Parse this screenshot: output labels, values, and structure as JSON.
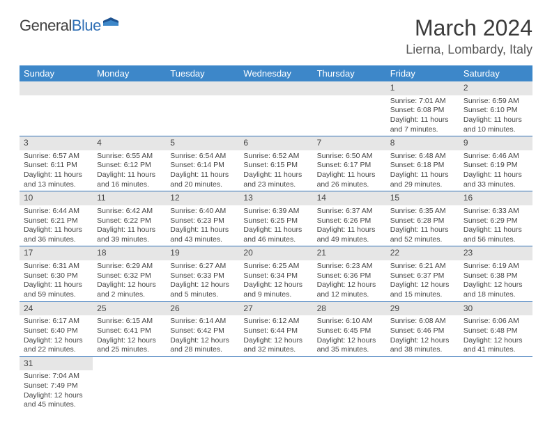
{
  "logo": {
    "general": "General",
    "blue": "Blue"
  },
  "header": {
    "month_title": "March 2024",
    "location": "Lierna, Lombardy, Italy"
  },
  "weekdays": [
    "Sunday",
    "Monday",
    "Tuesday",
    "Wednesday",
    "Thursday",
    "Friday",
    "Saturday"
  ],
  "colors": {
    "header_bg": "#3d87c9",
    "header_fg": "#ffffff",
    "daynum_bg": "#e6e6e6",
    "border": "#2f6fb5"
  },
  "weeks": [
    [
      null,
      null,
      null,
      null,
      null,
      {
        "day": "1",
        "sunrise": "Sunrise: 7:01 AM",
        "sunset": "Sunset: 6:08 PM",
        "daylight1": "Daylight: 11 hours",
        "daylight2": "and 7 minutes."
      },
      {
        "day": "2",
        "sunrise": "Sunrise: 6:59 AM",
        "sunset": "Sunset: 6:10 PM",
        "daylight1": "Daylight: 11 hours",
        "daylight2": "and 10 minutes."
      }
    ],
    [
      {
        "day": "3",
        "sunrise": "Sunrise: 6:57 AM",
        "sunset": "Sunset: 6:11 PM",
        "daylight1": "Daylight: 11 hours",
        "daylight2": "and 13 minutes."
      },
      {
        "day": "4",
        "sunrise": "Sunrise: 6:55 AM",
        "sunset": "Sunset: 6:12 PM",
        "daylight1": "Daylight: 11 hours",
        "daylight2": "and 16 minutes."
      },
      {
        "day": "5",
        "sunrise": "Sunrise: 6:54 AM",
        "sunset": "Sunset: 6:14 PM",
        "daylight1": "Daylight: 11 hours",
        "daylight2": "and 20 minutes."
      },
      {
        "day": "6",
        "sunrise": "Sunrise: 6:52 AM",
        "sunset": "Sunset: 6:15 PM",
        "daylight1": "Daylight: 11 hours",
        "daylight2": "and 23 minutes."
      },
      {
        "day": "7",
        "sunrise": "Sunrise: 6:50 AM",
        "sunset": "Sunset: 6:17 PM",
        "daylight1": "Daylight: 11 hours",
        "daylight2": "and 26 minutes."
      },
      {
        "day": "8",
        "sunrise": "Sunrise: 6:48 AM",
        "sunset": "Sunset: 6:18 PM",
        "daylight1": "Daylight: 11 hours",
        "daylight2": "and 29 minutes."
      },
      {
        "day": "9",
        "sunrise": "Sunrise: 6:46 AM",
        "sunset": "Sunset: 6:19 PM",
        "daylight1": "Daylight: 11 hours",
        "daylight2": "and 33 minutes."
      }
    ],
    [
      {
        "day": "10",
        "sunrise": "Sunrise: 6:44 AM",
        "sunset": "Sunset: 6:21 PM",
        "daylight1": "Daylight: 11 hours",
        "daylight2": "and 36 minutes."
      },
      {
        "day": "11",
        "sunrise": "Sunrise: 6:42 AM",
        "sunset": "Sunset: 6:22 PM",
        "daylight1": "Daylight: 11 hours",
        "daylight2": "and 39 minutes."
      },
      {
        "day": "12",
        "sunrise": "Sunrise: 6:40 AM",
        "sunset": "Sunset: 6:23 PM",
        "daylight1": "Daylight: 11 hours",
        "daylight2": "and 43 minutes."
      },
      {
        "day": "13",
        "sunrise": "Sunrise: 6:39 AM",
        "sunset": "Sunset: 6:25 PM",
        "daylight1": "Daylight: 11 hours",
        "daylight2": "and 46 minutes."
      },
      {
        "day": "14",
        "sunrise": "Sunrise: 6:37 AM",
        "sunset": "Sunset: 6:26 PM",
        "daylight1": "Daylight: 11 hours",
        "daylight2": "and 49 minutes."
      },
      {
        "day": "15",
        "sunrise": "Sunrise: 6:35 AM",
        "sunset": "Sunset: 6:28 PM",
        "daylight1": "Daylight: 11 hours",
        "daylight2": "and 52 minutes."
      },
      {
        "day": "16",
        "sunrise": "Sunrise: 6:33 AM",
        "sunset": "Sunset: 6:29 PM",
        "daylight1": "Daylight: 11 hours",
        "daylight2": "and 56 minutes."
      }
    ],
    [
      {
        "day": "17",
        "sunrise": "Sunrise: 6:31 AM",
        "sunset": "Sunset: 6:30 PM",
        "daylight1": "Daylight: 11 hours",
        "daylight2": "and 59 minutes."
      },
      {
        "day": "18",
        "sunrise": "Sunrise: 6:29 AM",
        "sunset": "Sunset: 6:32 PM",
        "daylight1": "Daylight: 12 hours",
        "daylight2": "and 2 minutes."
      },
      {
        "day": "19",
        "sunrise": "Sunrise: 6:27 AM",
        "sunset": "Sunset: 6:33 PM",
        "daylight1": "Daylight: 12 hours",
        "daylight2": "and 5 minutes."
      },
      {
        "day": "20",
        "sunrise": "Sunrise: 6:25 AM",
        "sunset": "Sunset: 6:34 PM",
        "daylight1": "Daylight: 12 hours",
        "daylight2": "and 9 minutes."
      },
      {
        "day": "21",
        "sunrise": "Sunrise: 6:23 AM",
        "sunset": "Sunset: 6:36 PM",
        "daylight1": "Daylight: 12 hours",
        "daylight2": "and 12 minutes."
      },
      {
        "day": "22",
        "sunrise": "Sunrise: 6:21 AM",
        "sunset": "Sunset: 6:37 PM",
        "daylight1": "Daylight: 12 hours",
        "daylight2": "and 15 minutes."
      },
      {
        "day": "23",
        "sunrise": "Sunrise: 6:19 AM",
        "sunset": "Sunset: 6:38 PM",
        "daylight1": "Daylight: 12 hours",
        "daylight2": "and 18 minutes."
      }
    ],
    [
      {
        "day": "24",
        "sunrise": "Sunrise: 6:17 AM",
        "sunset": "Sunset: 6:40 PM",
        "daylight1": "Daylight: 12 hours",
        "daylight2": "and 22 minutes."
      },
      {
        "day": "25",
        "sunrise": "Sunrise: 6:15 AM",
        "sunset": "Sunset: 6:41 PM",
        "daylight1": "Daylight: 12 hours",
        "daylight2": "and 25 minutes."
      },
      {
        "day": "26",
        "sunrise": "Sunrise: 6:14 AM",
        "sunset": "Sunset: 6:42 PM",
        "daylight1": "Daylight: 12 hours",
        "daylight2": "and 28 minutes."
      },
      {
        "day": "27",
        "sunrise": "Sunrise: 6:12 AM",
        "sunset": "Sunset: 6:44 PM",
        "daylight1": "Daylight: 12 hours",
        "daylight2": "and 32 minutes."
      },
      {
        "day": "28",
        "sunrise": "Sunrise: 6:10 AM",
        "sunset": "Sunset: 6:45 PM",
        "daylight1": "Daylight: 12 hours",
        "daylight2": "and 35 minutes."
      },
      {
        "day": "29",
        "sunrise": "Sunrise: 6:08 AM",
        "sunset": "Sunset: 6:46 PM",
        "daylight1": "Daylight: 12 hours",
        "daylight2": "and 38 minutes."
      },
      {
        "day": "30",
        "sunrise": "Sunrise: 6:06 AM",
        "sunset": "Sunset: 6:48 PM",
        "daylight1": "Daylight: 12 hours",
        "daylight2": "and 41 minutes."
      }
    ],
    [
      {
        "day": "31",
        "sunrise": "Sunrise: 7:04 AM",
        "sunset": "Sunset: 7:49 PM",
        "daylight1": "Daylight: 12 hours",
        "daylight2": "and 45 minutes."
      },
      null,
      null,
      null,
      null,
      null,
      null
    ]
  ]
}
